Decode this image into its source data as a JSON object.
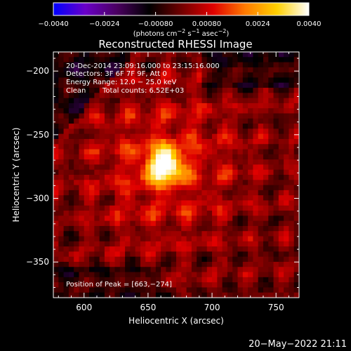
{
  "chart_data": {
    "type": "heatmap",
    "title": "Reconstructed RHESSI Image",
    "xlabel": "Heliocentric X (arcsec)",
    "ylabel": "Heliocentric Y (arcsec)",
    "xlim": [
      576,
      768
    ],
    "ylim": [
      -378,
      -185
    ],
    "xticks": [
      "600",
      "650",
      "700",
      "750"
    ],
    "xtick_values": [
      600,
      650,
      700,
      750
    ],
    "yticks": [
      "−200",
      "−250",
      "−300",
      "−350"
    ],
    "ytick_values": [
      -200,
      -250,
      -300,
      -350
    ],
    "annotations": {
      "time_range": "20-Dec-2014 23:09:16.000 to 23:15:16.000",
      "detectors": "Detectors: 3F 6F 7F 9F, Att 0",
      "energy": "Energy Range: 12.0 − 25.0 keV",
      "clean_label": "Clean",
      "total_counts": "Total counts: 6.52E+03",
      "peak": "Position of Peak = [663,−274]"
    },
    "peak": {
      "x": 663,
      "y": -274
    },
    "colorbar": {
      "range": [
        -0.004,
        0.004
      ],
      "tick_values": [
        -0.004,
        -0.0024,
        -0.0008,
        0.0008,
        0.0024,
        0.004
      ],
      "ticks": [
        "−0.0040",
        "−0.0024",
        "−0.00080",
        "0.00080",
        "0.0024",
        "0.0040"
      ],
      "unit_label": "(photons cm",
      "unit_exp1": "−2",
      "unit_mid": " s",
      "unit_exp2": "−1",
      "unit_mid2": " asec",
      "unit_exp3": "−2",
      "unit_close": ")",
      "stops": [
        "#0000ff",
        "#6a00c8",
        "#4a0060",
        "#000000",
        "#700000",
        "#e00000",
        "#ff7a00",
        "#ffd000",
        "#ffffff"
      ]
    }
  },
  "footer": {
    "timestamp": "20−May−2022 21:11"
  }
}
